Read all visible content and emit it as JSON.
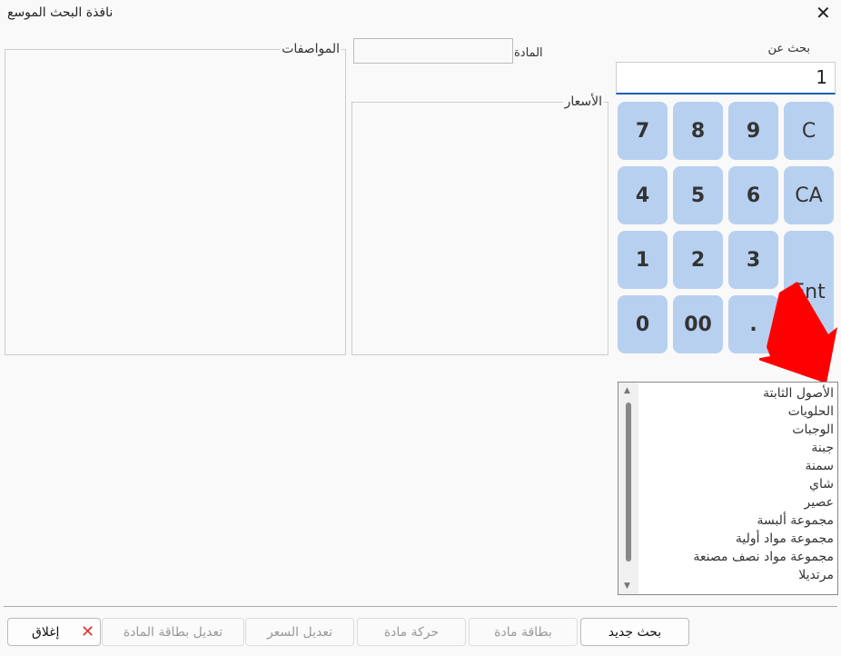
{
  "window": {
    "title": "نافذة البحث الموسع",
    "close_icon": "close-icon"
  },
  "search": {
    "label": "بحث عن",
    "value": "1"
  },
  "material": {
    "label": "المادة",
    "value": ""
  },
  "prices": {
    "label": "الأسعار"
  },
  "specs": {
    "label": "المواصفات"
  },
  "keypad": [
    "7",
    "8",
    "9",
    "C",
    "4",
    "5",
    "6",
    "CA",
    "1",
    "2",
    "3",
    "Ent",
    "0",
    "00",
    "."
  ],
  "list": [
    "الأصول الثابتة",
    "الحلويات",
    "الوجبات",
    "جبنة",
    "سمنة",
    "شاي",
    "عصير",
    "مجموعة ألبسة",
    "مجموعة مواد أولية",
    "مجموعة مواد نصف مصنعة",
    "مرتديلا"
  ],
  "buttons": {
    "new_search": "بحث جديد",
    "item_card": "بطاقة مادة",
    "item_movement": "حركة مادة",
    "edit_price": "تعديل السعر",
    "edit_item_card": "تعديل بطاقة المادة",
    "close": "إغلاق"
  },
  "colors": {
    "key": "#b7d0f0",
    "arrow": "#ff0000",
    "accent": "#1a5fb4"
  }
}
